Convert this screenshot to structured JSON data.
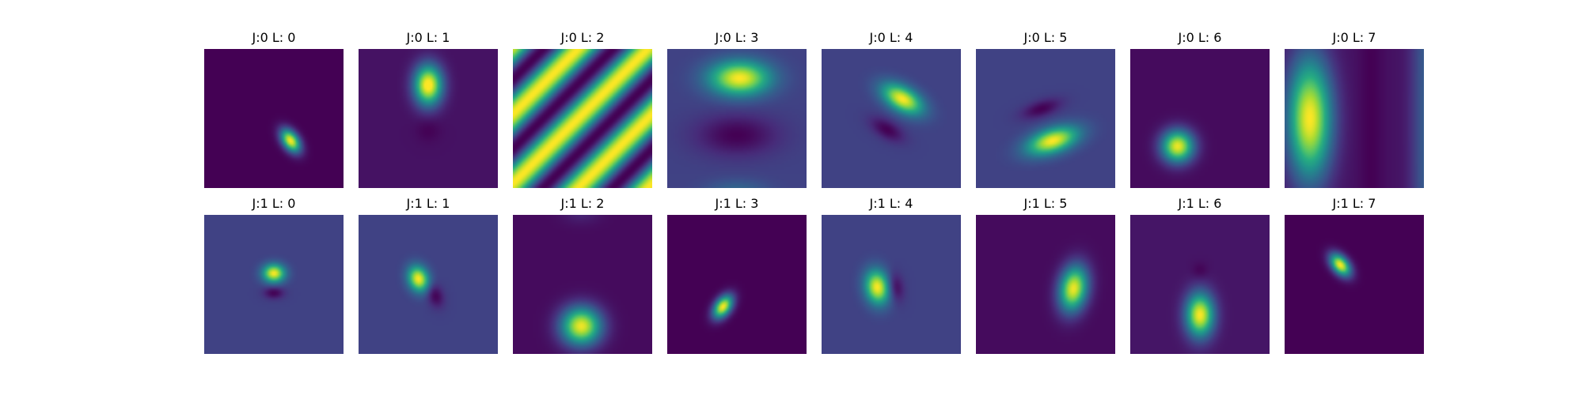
{
  "chart_data": {
    "type": "heatmap",
    "colormap": "viridis",
    "grid": false,
    "axes_visible": false,
    "rows": 2,
    "cols": 8,
    "panels": [
      {
        "title": "J:0 L: 0",
        "row": 0,
        "col": 0,
        "base": 0.0,
        "blobs": [
          {
            "cx": 0.62,
            "cy": 0.66,
            "sx": 0.04,
            "sy": 0.065,
            "theta": -35,
            "amp": 1.0
          }
        ]
      },
      {
        "title": "J:0 L: 1",
        "row": 0,
        "col": 1,
        "base": 0.05,
        "blobs": [
          {
            "cx": 0.5,
            "cy": 0.26,
            "sx": 0.07,
            "sy": 0.1,
            "theta": 0,
            "amp": 1.0
          },
          {
            "cx": 0.5,
            "cy": 0.58,
            "sx": 0.06,
            "sy": 0.06,
            "theta": 0,
            "amp": -0.05
          }
        ]
      },
      {
        "title": "J:0 L: 2",
        "row": 0,
        "col": 2,
        "base": 0.5,
        "waves": [
          {
            "amp": 0.5,
            "fx": 2.0,
            "fy": 2.0,
            "phase": 0.4
          }
        ]
      },
      {
        "title": "J:0 L: 3",
        "row": 0,
        "col": 3,
        "base": 0.2,
        "blobs": [
          {
            "cx": 0.52,
            "cy": 0.21,
            "sx": 0.15,
            "sy": 0.085,
            "theta": 0,
            "amp": 0.8
          },
          {
            "cx": 0.5,
            "cy": 0.62,
            "sx": 0.2,
            "sy": 0.1,
            "theta": 0,
            "amp": -0.2
          },
          {
            "cx": 0.5,
            "cy": 1.03,
            "sx": 0.15,
            "sy": 0.06,
            "theta": 0,
            "amp": 0.15
          }
        ]
      },
      {
        "title": "J:0 L: 4",
        "row": 0,
        "col": 4,
        "base": 0.2,
        "blobs": [
          {
            "cx": 0.58,
            "cy": 0.36,
            "sx": 0.11,
            "sy": 0.06,
            "theta": 30,
            "amp": 0.8
          },
          {
            "cx": 0.47,
            "cy": 0.58,
            "sx": 0.09,
            "sy": 0.045,
            "theta": 30,
            "amp": -0.2
          }
        ]
      },
      {
        "title": "J:0 L: 5",
        "row": 0,
        "col": 5,
        "base": 0.2,
        "blobs": [
          {
            "cx": 0.55,
            "cy": 0.66,
            "sx": 0.13,
            "sy": 0.06,
            "theta": -18,
            "amp": 0.8
          },
          {
            "cx": 0.47,
            "cy": 0.43,
            "sx": 0.1,
            "sy": 0.04,
            "theta": -18,
            "amp": -0.2
          }
        ]
      },
      {
        "title": "J:0 L: 6",
        "row": 0,
        "col": 6,
        "base": 0.03,
        "blobs": [
          {
            "cx": 0.34,
            "cy": 0.7,
            "sx": 0.08,
            "sy": 0.08,
            "theta": 0,
            "amp": 0.95
          }
        ]
      },
      {
        "title": "J:0 L: 7",
        "row": 0,
        "col": 7,
        "base": 0.05,
        "blobs": [
          {
            "cx": 0.18,
            "cy": 0.5,
            "sx": 0.11,
            "sy": 0.3,
            "theta": 0,
            "amp": 0.95
          },
          {
            "cx": 0.62,
            "cy": 0.5,
            "sx": 0.06,
            "sy": 2.0,
            "theta": 0,
            "amp": -0.05
          },
          {
            "cx": 1.02,
            "cy": 0.5,
            "sx": 0.08,
            "sy": 2.0,
            "theta": 0,
            "amp": 0.25
          }
        ]
      },
      {
        "title": "J:1 L: 0",
        "row": 1,
        "col": 0,
        "base": 0.2,
        "blobs": [
          {
            "cx": 0.5,
            "cy": 0.42,
            "sx": 0.055,
            "sy": 0.045,
            "theta": 0,
            "amp": 0.8
          },
          {
            "cx": 0.5,
            "cy": 0.56,
            "sx": 0.05,
            "sy": 0.03,
            "theta": 0,
            "amp": -0.2
          }
        ]
      },
      {
        "title": "J:1 L: 1",
        "row": 1,
        "col": 1,
        "base": 0.2,
        "blobs": [
          {
            "cx": 0.43,
            "cy": 0.46,
            "sx": 0.05,
            "sy": 0.065,
            "theta": -20,
            "amp": 0.8
          },
          {
            "cx": 0.55,
            "cy": 0.58,
            "sx": 0.04,
            "sy": 0.06,
            "theta": -20,
            "amp": -0.2
          }
        ]
      },
      {
        "title": "J:1 L: 2",
        "row": 1,
        "col": 2,
        "base": 0.03,
        "blobs": [
          {
            "cx": 0.49,
            "cy": 0.8,
            "sx": 0.1,
            "sy": 0.095,
            "theta": 0,
            "amp": 0.95
          },
          {
            "cx": 0.49,
            "cy": -0.02,
            "sx": 0.1,
            "sy": 0.06,
            "theta": 0,
            "amp": 0.08
          }
        ]
      },
      {
        "title": "J:1 L: 3",
        "row": 1,
        "col": 3,
        "base": 0.0,
        "blobs": [
          {
            "cx": 0.4,
            "cy": 0.66,
            "sx": 0.04,
            "sy": 0.065,
            "theta": 35,
            "amp": 1.0
          }
        ]
      },
      {
        "title": "J:1 L: 4",
        "row": 1,
        "col": 4,
        "base": 0.2,
        "blobs": [
          {
            "cx": 0.4,
            "cy": 0.52,
            "sx": 0.06,
            "sy": 0.085,
            "theta": -10,
            "amp": 0.8
          },
          {
            "cx": 0.53,
            "cy": 0.52,
            "sx": 0.04,
            "sy": 0.07,
            "theta": -10,
            "amp": -0.2
          }
        ]
      },
      {
        "title": "J:1 L: 5",
        "row": 1,
        "col": 5,
        "base": 0.03,
        "blobs": [
          {
            "cx": 0.7,
            "cy": 0.53,
            "sx": 0.07,
            "sy": 0.115,
            "theta": 10,
            "amp": 0.95
          }
        ]
      },
      {
        "title": "J:1 L: 6",
        "row": 1,
        "col": 6,
        "base": 0.06,
        "blobs": [
          {
            "cx": 0.5,
            "cy": 0.72,
            "sx": 0.07,
            "sy": 0.11,
            "theta": 0,
            "amp": 0.94
          },
          {
            "cx": 0.5,
            "cy": 0.4,
            "sx": 0.04,
            "sy": 0.04,
            "theta": 0,
            "amp": -0.06
          }
        ]
      },
      {
        "title": "J:1 L: 7",
        "row": 1,
        "col": 7,
        "base": 0.0,
        "blobs": [
          {
            "cx": 0.4,
            "cy": 0.36,
            "sx": 0.04,
            "sy": 0.065,
            "theta": -40,
            "amp": 1.0
          }
        ]
      }
    ]
  }
}
